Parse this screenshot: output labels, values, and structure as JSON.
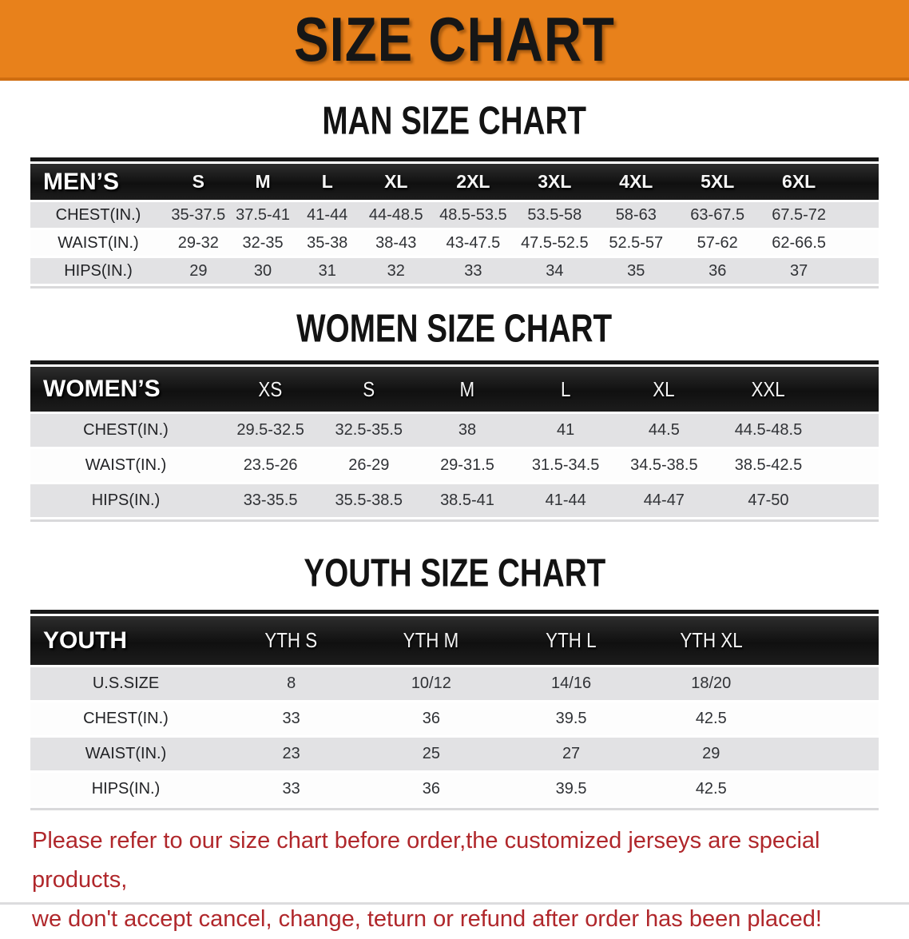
{
  "banner": {
    "title": "SIZE CHART",
    "bg_color": "#E8811B",
    "text_color": "#161616"
  },
  "sections": [
    {
      "title": "MAN SIZE CHART",
      "table": {
        "header_label": "MEN’S",
        "columns": [
          "S",
          "M",
          "L",
          "XL",
          "2XL",
          "3XL",
          "4XL",
          "5XL",
          "6XL"
        ],
        "rows": [
          {
            "label": "CHEST(IN.)",
            "values": [
              "35-37.5",
              "37.5-41",
              "41-44",
              "44-48.5",
              "48.5-53.5",
              "53.5-58",
              "58-63",
              "63-67.5",
              "67.5-72"
            ]
          },
          {
            "label": "WAIST(IN.)",
            "values": [
              "29-32",
              "32-35",
              "35-38",
              "38-43",
              "43-47.5",
              "47.5-52.5",
              "52.5-57",
              "57-62",
              "62-66.5"
            ]
          },
          {
            "label": "HIPS(IN.)",
            "values": [
              "29",
              "30",
              "31",
              "32",
              "33",
              "34",
              "35",
              "36",
              "37"
            ]
          }
        ]
      }
    },
    {
      "title": "WOMEN SIZE CHART",
      "table": {
        "header_label": "WOMEN’S",
        "columns": [
          "XS",
          "S",
          "M",
          "L",
          "XL",
          "XXL"
        ],
        "rows": [
          {
            "label": "CHEST(IN.)",
            "values": [
              "29.5-32.5",
              "32.5-35.5",
              "38",
              "41",
              "44.5",
              "44.5-48.5"
            ]
          },
          {
            "label": "WAIST(IN.)",
            "values": [
              "23.5-26",
              "26-29",
              "29-31.5",
              "31.5-34.5",
              "34.5-38.5",
              "38.5-42.5"
            ]
          },
          {
            "label": "HIPS(IN.)",
            "values": [
              "33-35.5",
              "35.5-38.5",
              "38.5-41",
              "41-44",
              "44-47",
              "47-50"
            ]
          }
        ]
      }
    },
    {
      "title": "YOUTH SIZE CHART",
      "table": {
        "header_label": "YOUTH",
        "columns": [
          "YTH S",
          "YTH M",
          "YTH L",
          "YTH XL"
        ],
        "rows": [
          {
            "label": "U.S.SIZE",
            "values": [
              "8",
              "10/12",
              "14/16",
              "18/20"
            ]
          },
          {
            "label": "CHEST(IN.)",
            "values": [
              "33",
              "36",
              "39.5",
              "42.5"
            ]
          },
          {
            "label": "WAIST(IN.)",
            "values": [
              "23",
              "25",
              "27",
              "29"
            ]
          },
          {
            "label": "HIPS(IN.)",
            "values": [
              "33",
              "36",
              "39.5",
              "42.5"
            ]
          }
        ]
      }
    }
  ],
  "disclaimer": {
    "line1": "Please refer to our size chart before order,the customized jerseys are special products,",
    "line2": "we don't accept cancel, change, teturn or refund after order has been placed!",
    "color": "#B0272B"
  }
}
